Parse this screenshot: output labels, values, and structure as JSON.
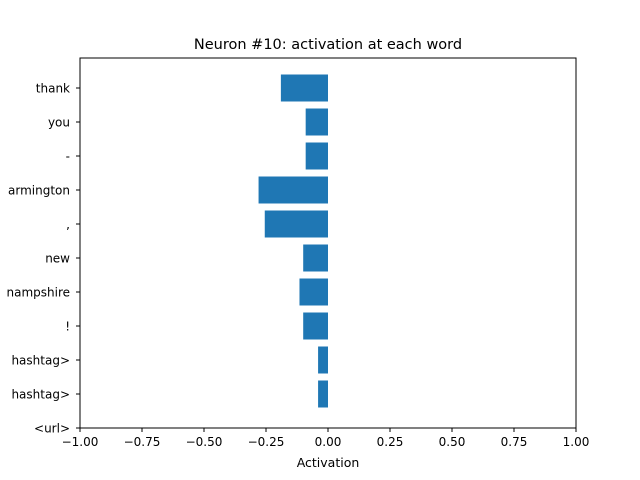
{
  "chart_data": {
    "type": "bar",
    "orientation": "horizontal",
    "title": "Neuron #10: activation at each word",
    "xlabel": "Activation",
    "ylabel": "",
    "xlim": [
      -1.0,
      1.0
    ],
    "x_ticks": [
      -1.0,
      -0.75,
      -0.5,
      -0.25,
      0.0,
      0.25,
      0.5,
      0.75,
      1.0
    ],
    "x_tick_labels": [
      "−1.00",
      "−0.75",
      "−0.50",
      "−0.25",
      "0.00",
      "0.25",
      "0.50",
      "0.75",
      "1.00"
    ],
    "categories": [
      "thank",
      "you",
      "-",
      "farmington",
      ",",
      "new",
      "hampshire",
      "!",
      "<hashtag>",
      "<hashtag>",
      "<url>"
    ],
    "tick_labels_visible": [
      "thank",
      "you",
      "-",
      "armington",
      ",",
      "new",
      "nampshire",
      "!",
      "hashtag>",
      "hashtag>",
      "<url>"
    ],
    "values": [
      -0.19,
      -0.09,
      -0.09,
      -0.28,
      -0.255,
      -0.1,
      -0.115,
      -0.1,
      -0.04,
      -0.04,
      0.0
    ],
    "bar_color": "#1f77b4",
    "grid": false,
    "legend": "none"
  }
}
